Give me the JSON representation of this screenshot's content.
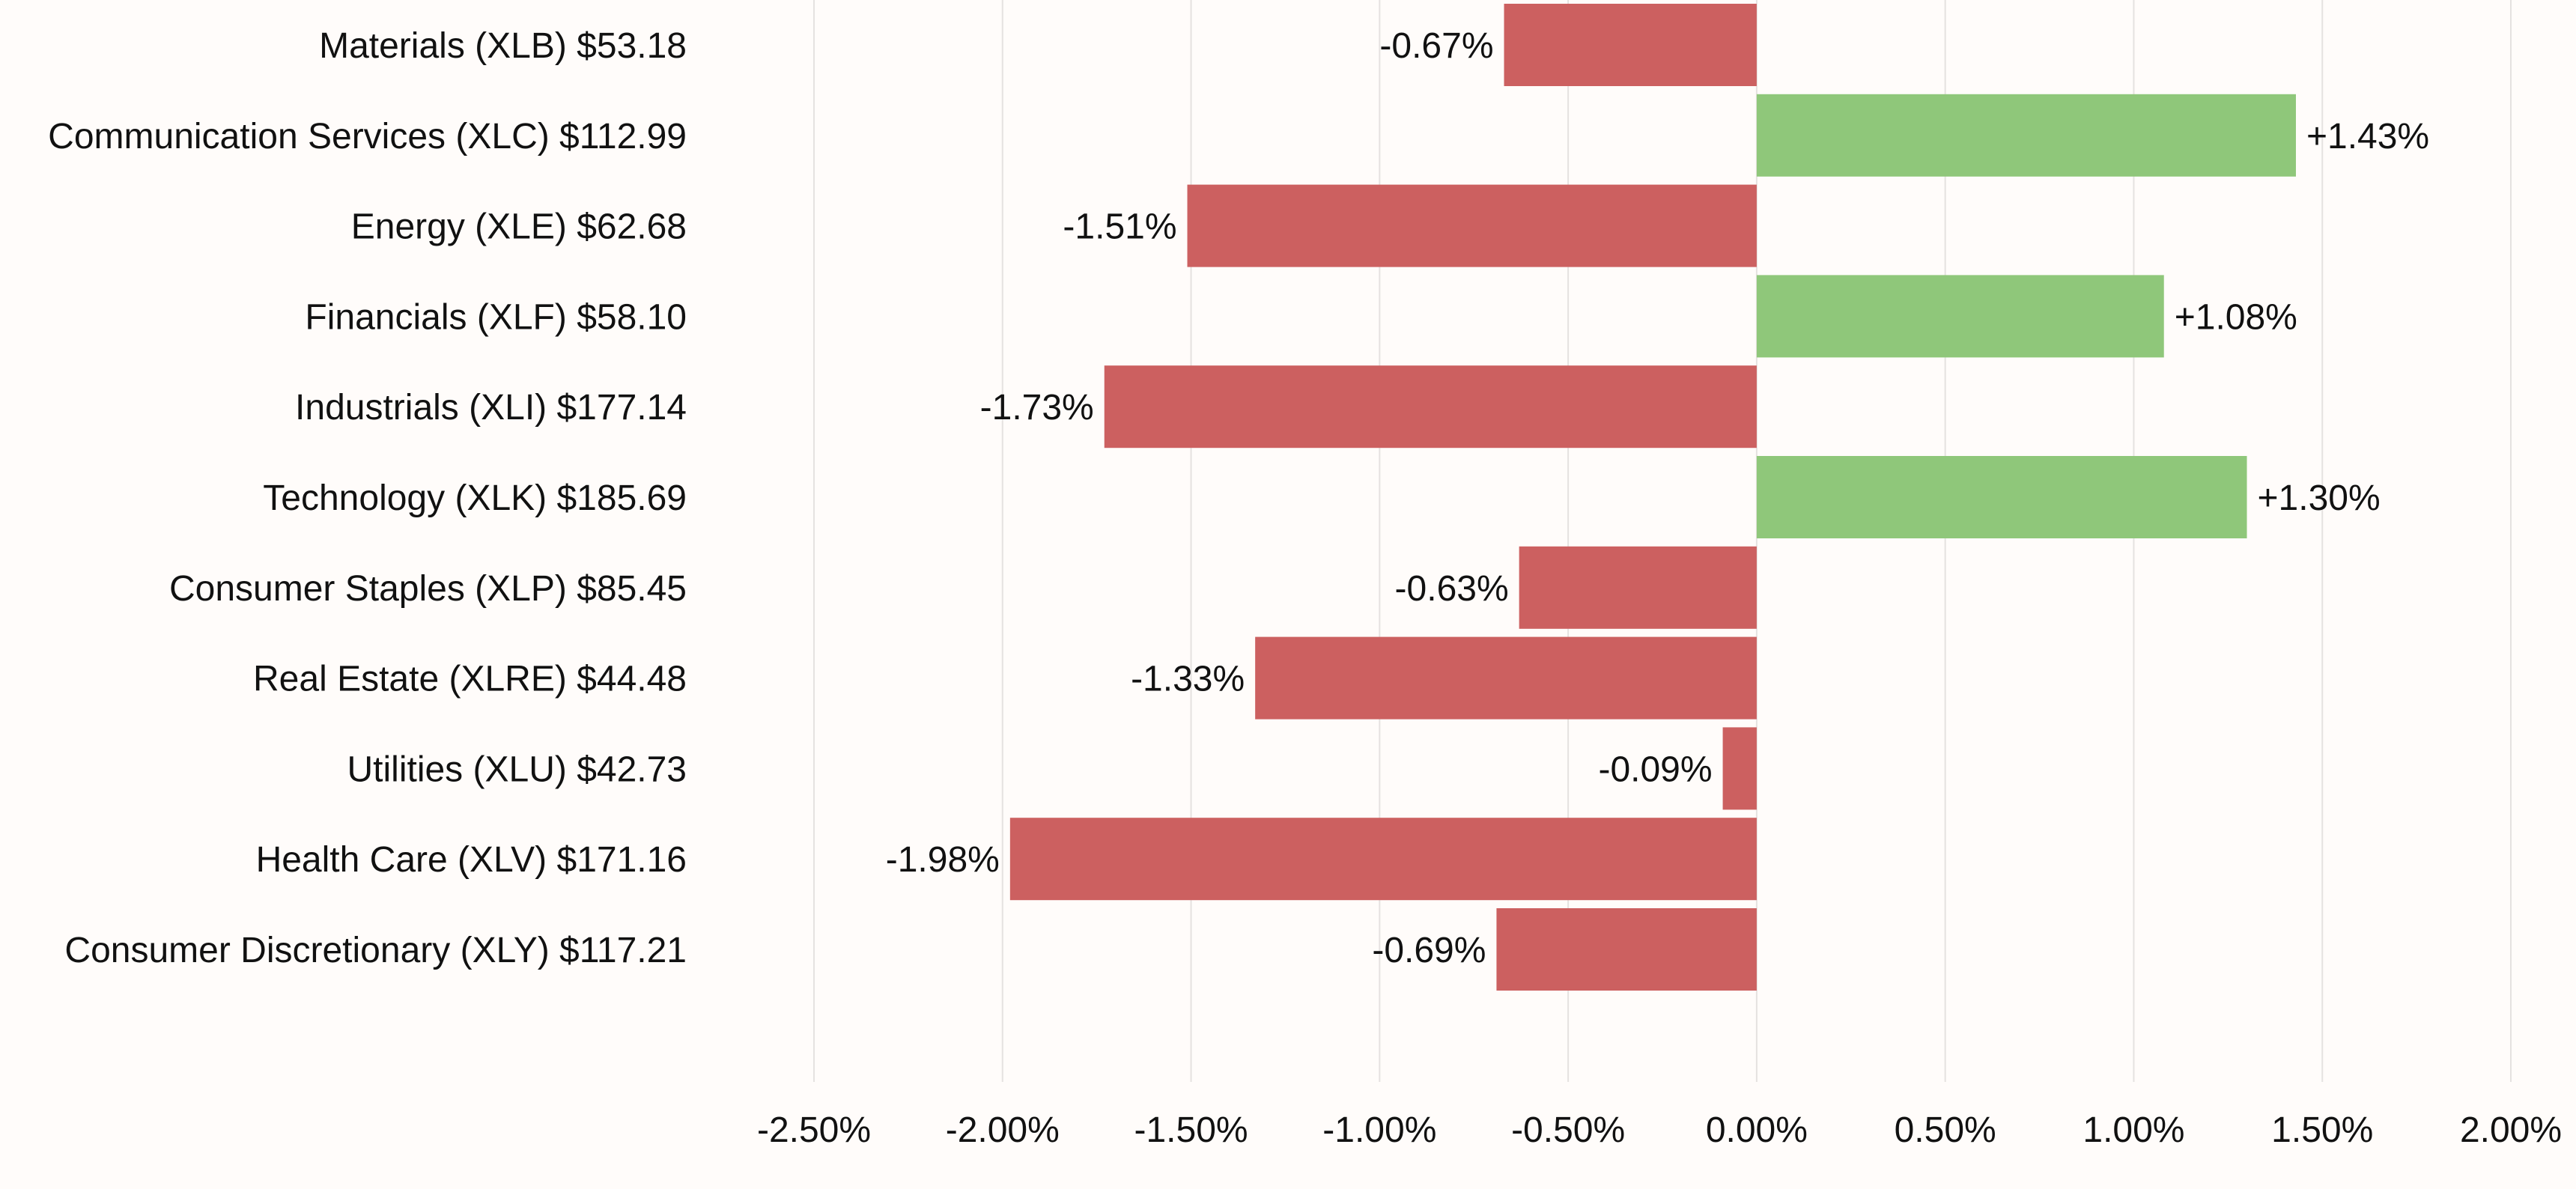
{
  "chart_data": {
    "type": "bar",
    "orientation": "horizontal",
    "categories": [
      "Materials (XLB) $53.18",
      "Communication Services (XLC) $112.99",
      "Energy (XLE) $62.68",
      "Financials (XLF) $58.10",
      "Industrials (XLI) $177.14",
      "Technology (XLK) $185.69",
      "Consumer Staples (XLP) $85.45",
      "Real Estate (XLRE) $44.48",
      "Utilities (XLU) $42.73",
      "Health Care (XLV) $171.16",
      "Consumer Discretionary (XLY) $117.21"
    ],
    "values": [
      -0.67,
      1.43,
      -1.51,
      1.08,
      -1.73,
      1.3,
      -0.63,
      -1.33,
      -0.09,
      -1.98,
      -0.69
    ],
    "value_labels": [
      "-0.67%",
      "+1.43%",
      "-1.51%",
      "+1.08%",
      "-1.73%",
      "+1.30%",
      "-0.63%",
      "-1.33%",
      "-0.09%",
      "-1.98%",
      "-0.69%"
    ],
    "xlim": [
      -2.5,
      2.0
    ],
    "x_ticks": [
      -2.5,
      -2.0,
      -1.5,
      -1.0,
      -0.5,
      0.0,
      0.5,
      1.0,
      1.5,
      2.0
    ],
    "x_tick_labels": [
      "-2.50%",
      "-2.00%",
      "-1.50%",
      "-1.00%",
      "-0.50%",
      "0.00%",
      "0.50%",
      "1.00%",
      "1.50%",
      "2.00%"
    ],
    "grid": "vertical",
    "colors": {
      "positive": "#8fc77a",
      "negative": "#cc6060",
      "background": "#fffcfa",
      "grid": "#e5e2e0"
    },
    "title": "",
    "xlabel": "",
    "ylabel": ""
  }
}
